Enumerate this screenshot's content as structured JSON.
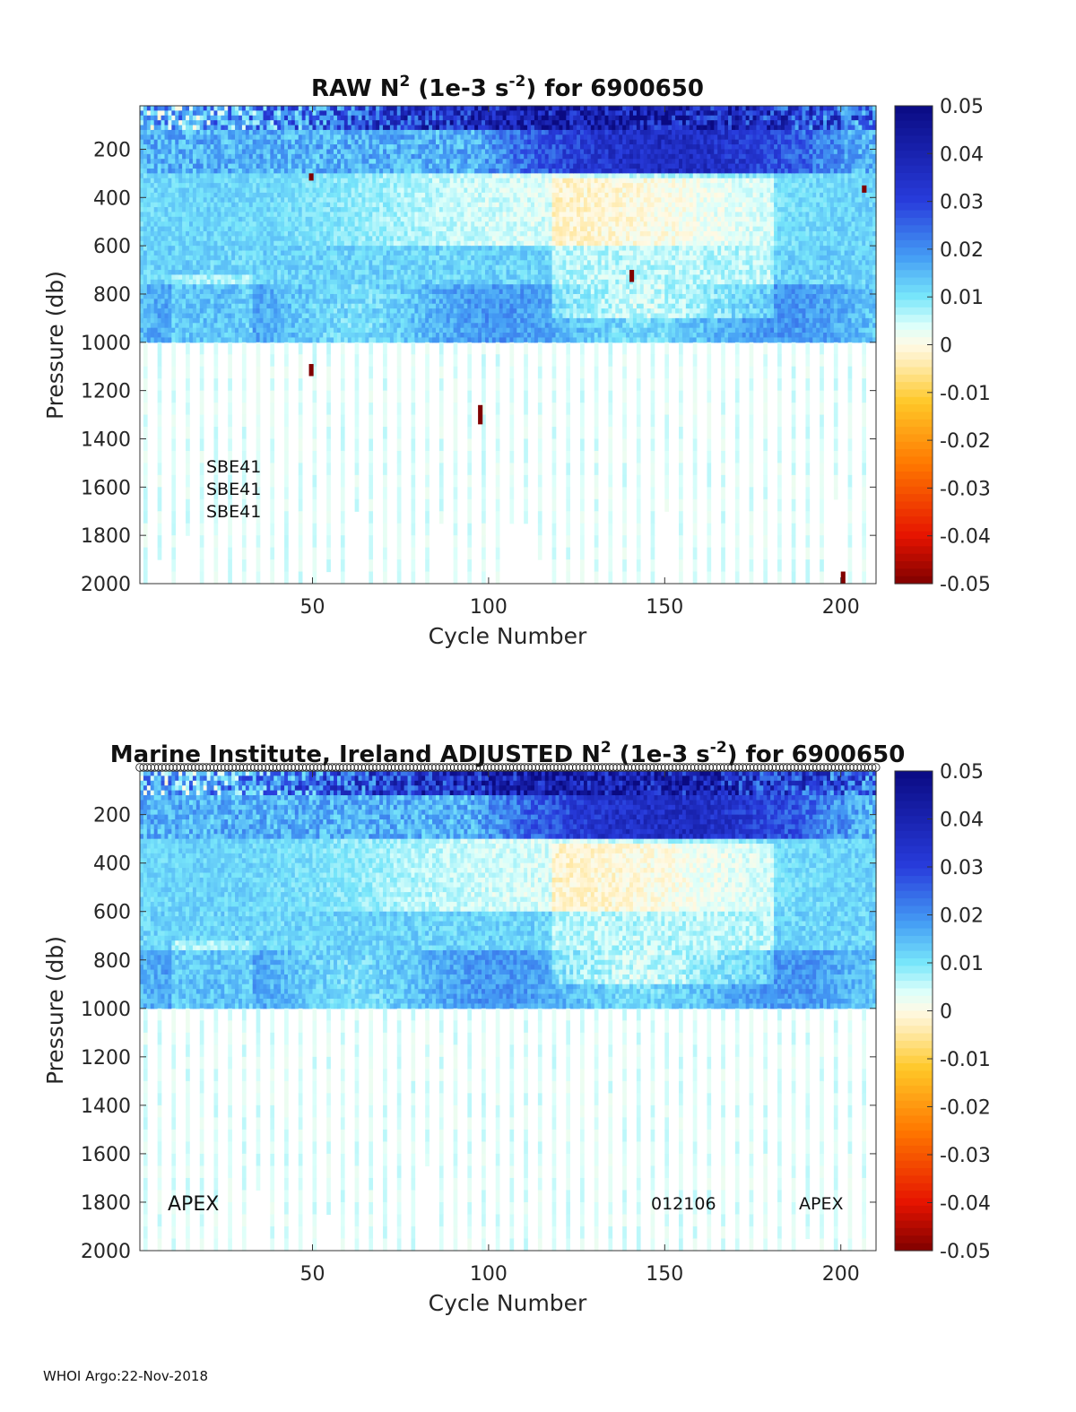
{
  "footer": "WHOI Argo:22-Nov-2018",
  "chart_data": [
    {
      "type": "heatmap",
      "title_prefix": "RAW N",
      "title_sup": "2",
      "title_mid": " (1e-3 s",
      "title_sup2": "-2",
      "title_suffix": ") for 6900650",
      "xlabel": "Cycle Number",
      "ylabel": "Pressure (db)",
      "xlim": [
        1,
        210
      ],
      "ylim": [
        2000,
        20
      ],
      "xticks": [
        50,
        100,
        150,
        200
      ],
      "yticks": [
        200,
        400,
        600,
        800,
        1000,
        1200,
        1400,
        1600,
        1800,
        2000
      ],
      "colorbar": {
        "min": -0.05,
        "max": 0.05,
        "ticks": [
          "0.05",
          "0.04",
          "0.03",
          "0.02",
          "0.01",
          "0",
          "-0.01",
          "-0.02",
          "-0.03",
          "-0.04",
          "-0.05"
        ]
      },
      "annotations": [
        "SBE41",
        "SBE41",
        "SBE41"
      ],
      "outliers": [
        {
          "cycle": 49,
          "p_start": 300,
          "p_end": 330,
          "value": -0.05
        },
        {
          "cycle": 49,
          "p_start": 1090,
          "p_end": 1140,
          "value": -0.05
        },
        {
          "cycle": 97,
          "p_start": 1260,
          "p_end": 1340,
          "value": -0.05
        },
        {
          "cycle": 140,
          "p_start": 700,
          "p_end": 750,
          "value": -0.05
        },
        {
          "cycle": 200,
          "p_start": 1950,
          "p_end": 2000,
          "value": -0.05
        },
        {
          "cycle": 206,
          "p_start": 350,
          "p_end": 380,
          "value": -0.05
        }
      ]
    },
    {
      "type": "heatmap",
      "title_prefix": "Marine Institute, Ireland  ADJUSTED N",
      "title_sup": "2",
      "title_mid": " (1e-3 s",
      "title_sup2": "-2",
      "title_suffix": ") for 6900650",
      "xlabel": "Cycle Number",
      "ylabel": "Pressure (db)",
      "xlim": [
        1,
        210
      ],
      "ylim": [
        2000,
        20
      ],
      "xticks": [
        50,
        100,
        150,
        200
      ],
      "yticks": [
        200,
        400,
        600,
        800,
        1000,
        1200,
        1400,
        1600,
        1800,
        2000
      ],
      "colorbar": {
        "min": -0.05,
        "max": 0.05,
        "ticks": [
          "0.05",
          "0.04",
          "0.03",
          "0.02",
          "0.01",
          "0",
          "-0.01",
          "-0.02",
          "-0.03",
          "-0.04",
          "-0.05"
        ]
      },
      "annotations": [
        "APEX",
        "012106",
        "APEX"
      ],
      "qc_marker_row": "o"
    }
  ]
}
